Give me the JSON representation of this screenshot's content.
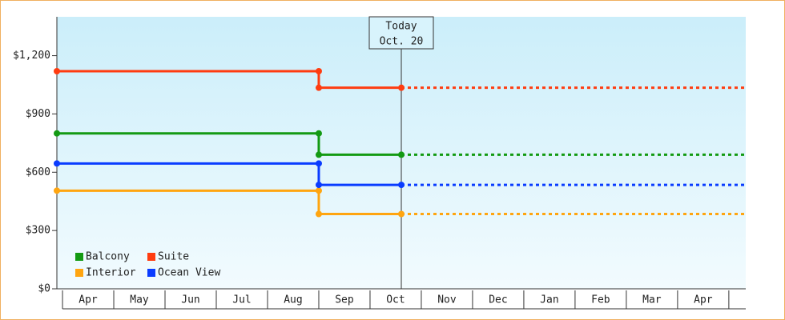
{
  "chart_data": {
    "type": "step-line",
    "categories": [
      "Apr",
      "May",
      "Jun",
      "Jul",
      "Aug",
      "Sep",
      "Oct",
      "Nov",
      "Dec",
      "Jan",
      "Feb",
      "Mar",
      "Apr"
    ],
    "xlim": [
      -0.11,
      13.33
    ],
    "x": [
      -0.11,
      5,
      5,
      6.61
    ],
    "ylim": [
      0,
      1400
    ],
    "yticks": [
      {
        "value": 0,
        "label": "$0"
      },
      {
        "value": 300,
        "label": "$300"
      },
      {
        "value": 600,
        "label": "$600"
      },
      {
        "value": 900,
        "label": "$900"
      },
      {
        "value": 1200,
        "label": "$1,200"
      }
    ],
    "annotation": {
      "x": 6.61,
      "lines": [
        "Today",
        "Oct. 20"
      ]
    },
    "series": [
      {
        "name": "Balcony",
        "color": "#139a13",
        "values": [
          800,
          800,
          690,
          690
        ]
      },
      {
        "name": "Suite",
        "color": "#ff3c10",
        "values": [
          1120,
          1120,
          1035,
          1035
        ]
      },
      {
        "name": "Interior",
        "color": "#ffa510",
        "values": [
          505,
          505,
          385,
          385
        ]
      },
      {
        "name": "Ocean View",
        "color": "#0a3cff",
        "values": [
          645,
          645,
          535,
          535
        ]
      }
    ],
    "legend": "bottom-left"
  }
}
